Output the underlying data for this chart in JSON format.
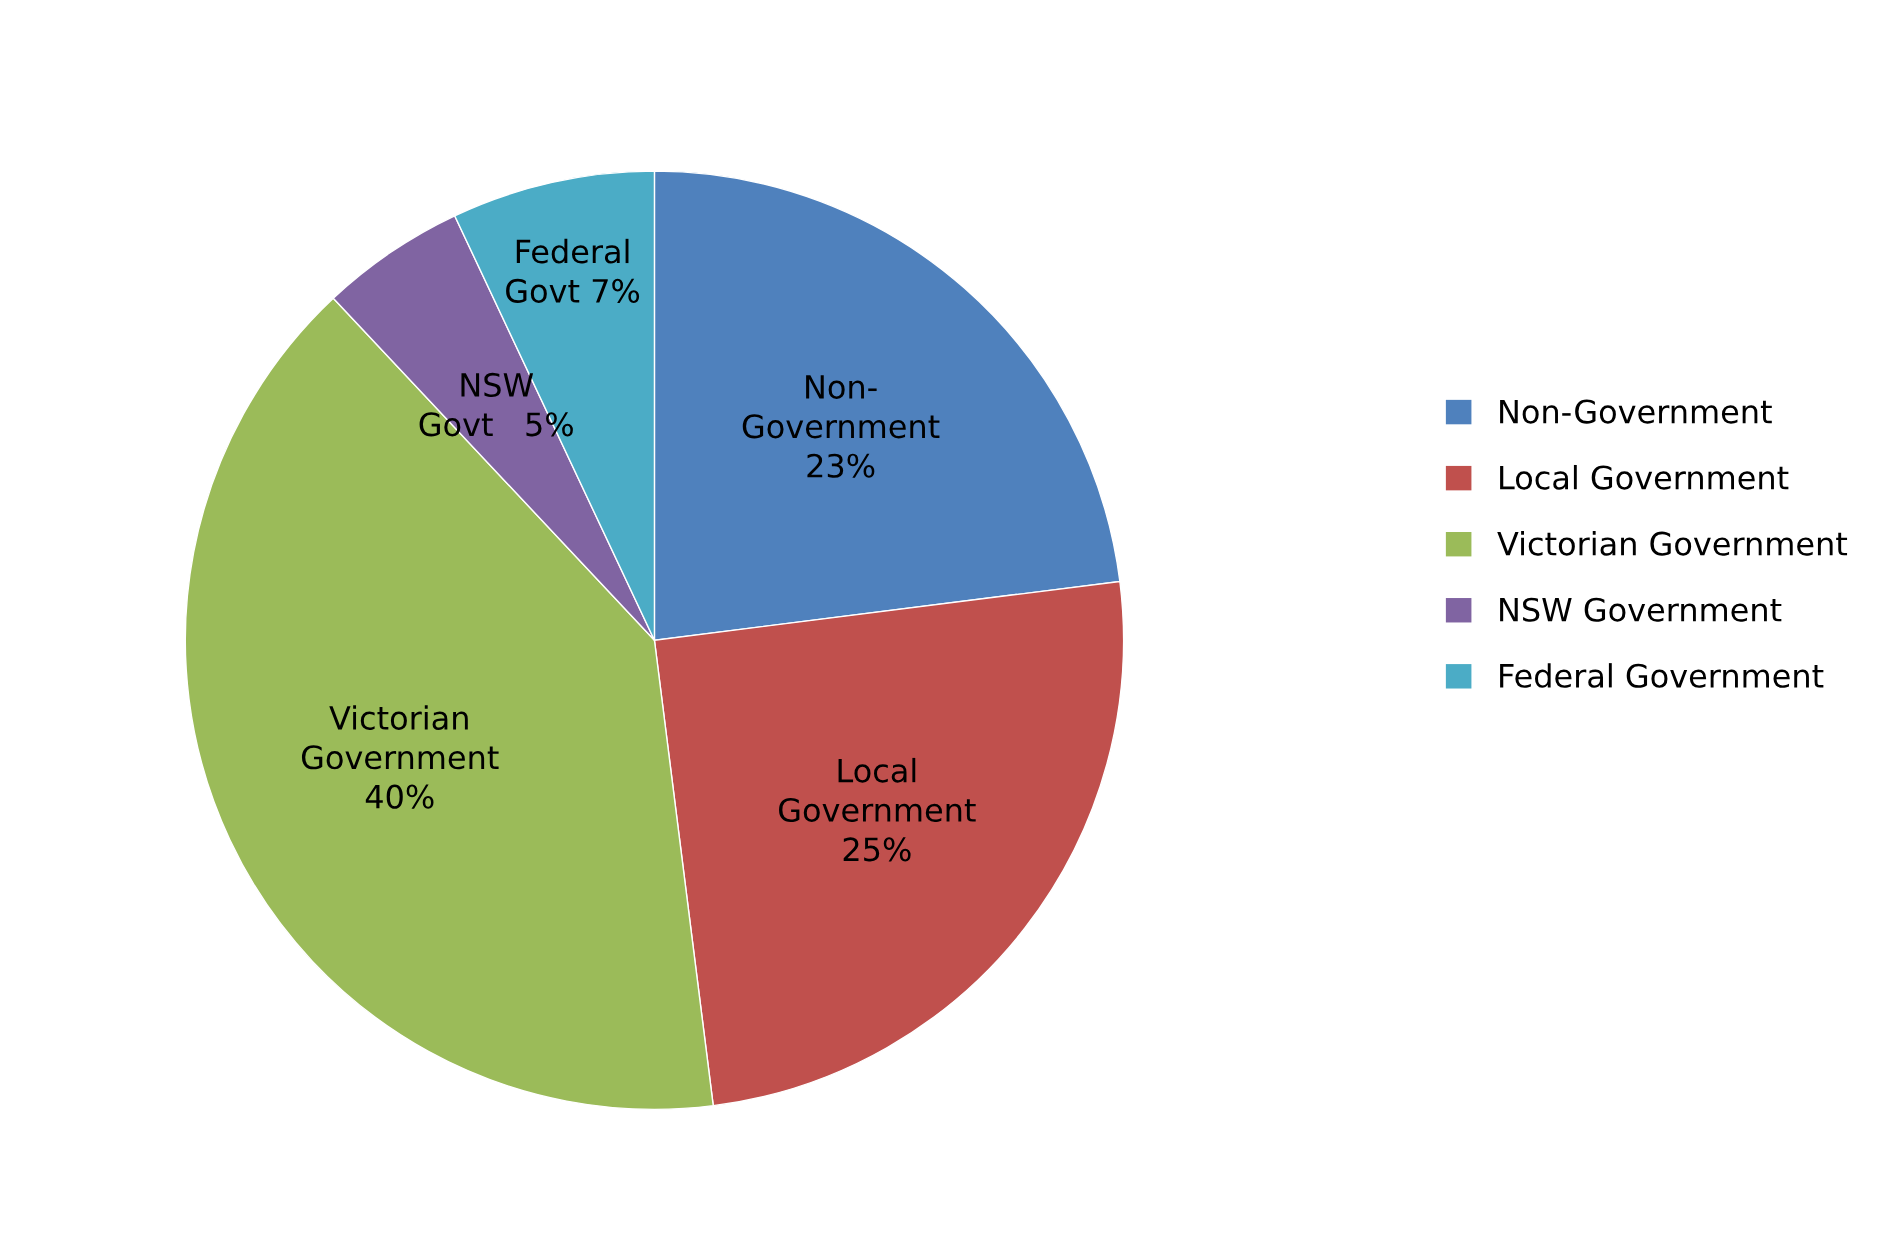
{
  "chart_data": {
    "type": "pie",
    "categories": [
      "Non-Government",
      "Local Government",
      "Victorian Government",
      "NSW Government",
      "Federal Government"
    ],
    "values": [
      23,
      25,
      40,
      5,
      7
    ],
    "colors": [
      "#4f81bd",
      "#c0504d",
      "#9bbb59",
      "#8064a2",
      "#4bacc6"
    ],
    "value_labels": [
      "Non-\nGovernment\n23%",
      "Local\nGovernment\n25%",
      "Victorian\nGovernment\n40%",
      "NSW\nGovt   5%",
      "Federal\nGovt 7%"
    ],
    "legend": "right"
  }
}
